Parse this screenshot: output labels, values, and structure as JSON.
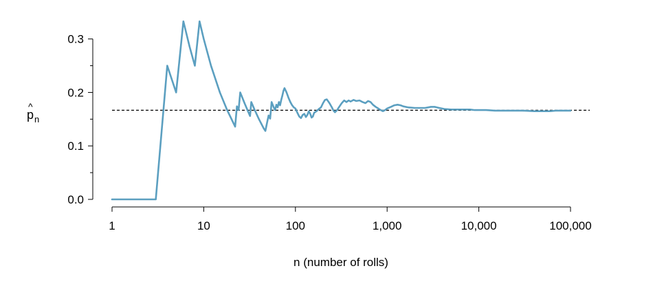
{
  "chart_data": {
    "type": "line",
    "title": "",
    "xlabel": "n (number of rolls)",
    "ylabel": {
      "main": "p",
      "hat": "^",
      "sub": "n"
    },
    "x_scale": "log10",
    "xlim": [
      1,
      100000
    ],
    "ylim": [
      0,
      0.333
    ],
    "x_ticks": [
      {
        "value": 1,
        "label": "1"
      },
      {
        "value": 10,
        "label": "10"
      },
      {
        "value": 100,
        "label": "100"
      },
      {
        "value": 1000,
        "label": "1,000"
      },
      {
        "value": 10000,
        "label": "10,000"
      },
      {
        "value": 100000,
        "label": "100,000"
      }
    ],
    "y_ticks": [
      {
        "value": 0.0,
        "label": "0.0"
      },
      {
        "value": 0.1,
        "label": "0.1"
      },
      {
        "value": 0.2,
        "label": "0.2"
      },
      {
        "value": 0.3,
        "label": "0.3"
      }
    ],
    "y_minor_ticks": [
      0.05,
      0.15,
      0.25
    ],
    "reference_line": {
      "y": 0.1667,
      "style": "dashed",
      "color": "#000000"
    },
    "grid": false,
    "series": [
      {
        "color": "#5b9fc0",
        "points": [
          [
            1,
            0.0
          ],
          [
            2,
            0.0
          ],
          [
            3,
            0.0
          ],
          [
            4,
            0.25
          ],
          [
            5,
            0.2
          ],
          [
            6,
            0.333
          ],
          [
            7,
            0.286
          ],
          [
            8,
            0.25
          ],
          [
            9,
            0.333
          ],
          [
            10,
            0.3
          ],
          [
            12,
            0.25
          ],
          [
            15,
            0.2
          ],
          [
            18,
            0.167
          ],
          [
            22,
            0.136
          ],
          [
            23,
            0.174
          ],
          [
            24,
            0.167
          ],
          [
            25,
            0.2
          ],
          [
            28,
            0.179
          ],
          [
            30,
            0.167
          ],
          [
            32,
            0.156
          ],
          [
            33,
            0.182
          ],
          [
            36,
            0.167
          ],
          [
            40,
            0.15
          ],
          [
            45,
            0.133
          ],
          [
            47,
            0.128
          ],
          [
            49,
            0.143
          ],
          [
            51,
            0.157
          ],
          [
            53,
            0.151
          ],
          [
            55,
            0.182
          ],
          [
            58,
            0.172
          ],
          [
            60,
            0.167
          ],
          [
            62,
            0.177
          ],
          [
            64,
            0.172
          ],
          [
            66,
            0.182
          ],
          [
            68,
            0.176
          ],
          [
            70,
            0.186
          ],
          [
            72,
            0.194
          ],
          [
            74,
            0.203
          ],
          [
            76,
            0.208
          ],
          [
            80,
            0.2
          ],
          [
            84,
            0.19
          ],
          [
            88,
            0.182
          ],
          [
            92,
            0.176
          ],
          [
            96,
            0.172
          ],
          [
            100,
            0.17
          ],
          [
            105,
            0.162
          ],
          [
            110,
            0.155
          ],
          [
            115,
            0.152
          ],
          [
            120,
            0.158
          ],
          [
            125,
            0.16
          ],
          [
            130,
            0.154
          ],
          [
            135,
            0.158
          ],
          [
            140,
            0.165
          ],
          [
            145,
            0.16
          ],
          [
            150,
            0.153
          ],
          [
            155,
            0.155
          ],
          [
            160,
            0.162
          ],
          [
            170,
            0.165
          ],
          [
            180,
            0.169
          ],
          [
            190,
            0.172
          ],
          [
            200,
            0.18
          ],
          [
            210,
            0.186
          ],
          [
            220,
            0.187
          ],
          [
            235,
            0.18
          ],
          [
            250,
            0.172
          ],
          [
            260,
            0.166
          ],
          [
            270,
            0.163
          ],
          [
            285,
            0.167
          ],
          [
            300,
            0.173
          ],
          [
            320,
            0.18
          ],
          [
            340,
            0.185
          ],
          [
            360,
            0.182
          ],
          [
            380,
            0.185
          ],
          [
            400,
            0.183
          ],
          [
            430,
            0.186
          ],
          [
            460,
            0.184
          ],
          [
            500,
            0.185
          ],
          [
            540,
            0.182
          ],
          [
            580,
            0.18
          ],
          [
            620,
            0.184
          ],
          [
            660,
            0.182
          ],
          [
            700,
            0.177
          ],
          [
            750,
            0.173
          ],
          [
            800,
            0.17
          ],
          [
            850,
            0.167
          ],
          [
            900,
            0.165
          ],
          [
            950,
            0.167
          ],
          [
            1000,
            0.17
          ],
          [
            1100,
            0.173
          ],
          [
            1200,
            0.176
          ],
          [
            1300,
            0.177
          ],
          [
            1400,
            0.176
          ],
          [
            1500,
            0.174
          ],
          [
            1700,
            0.172
          ],
          [
            2000,
            0.171
          ],
          [
            2300,
            0.171
          ],
          [
            2600,
            0.171
          ],
          [
            3000,
            0.173
          ],
          [
            3300,
            0.173
          ],
          [
            3700,
            0.171
          ],
          [
            4200,
            0.169
          ],
          [
            5000,
            0.168
          ],
          [
            6000,
            0.168
          ],
          [
            7000,
            0.168
          ],
          [
            8000,
            0.168
          ],
          [
            9000,
            0.167
          ],
          [
            10000,
            0.167
          ],
          [
            12000,
            0.167
          ],
          [
            15000,
            0.166
          ],
          [
            20000,
            0.166
          ],
          [
            25000,
            0.166
          ],
          [
            30000,
            0.166
          ],
          [
            40000,
            0.165
          ],
          [
            50000,
            0.165
          ],
          [
            60000,
            0.165
          ],
          [
            70000,
            0.166
          ],
          [
            80000,
            0.166
          ],
          [
            90000,
            0.166
          ],
          [
            100000,
            0.166
          ]
        ]
      }
    ]
  }
}
